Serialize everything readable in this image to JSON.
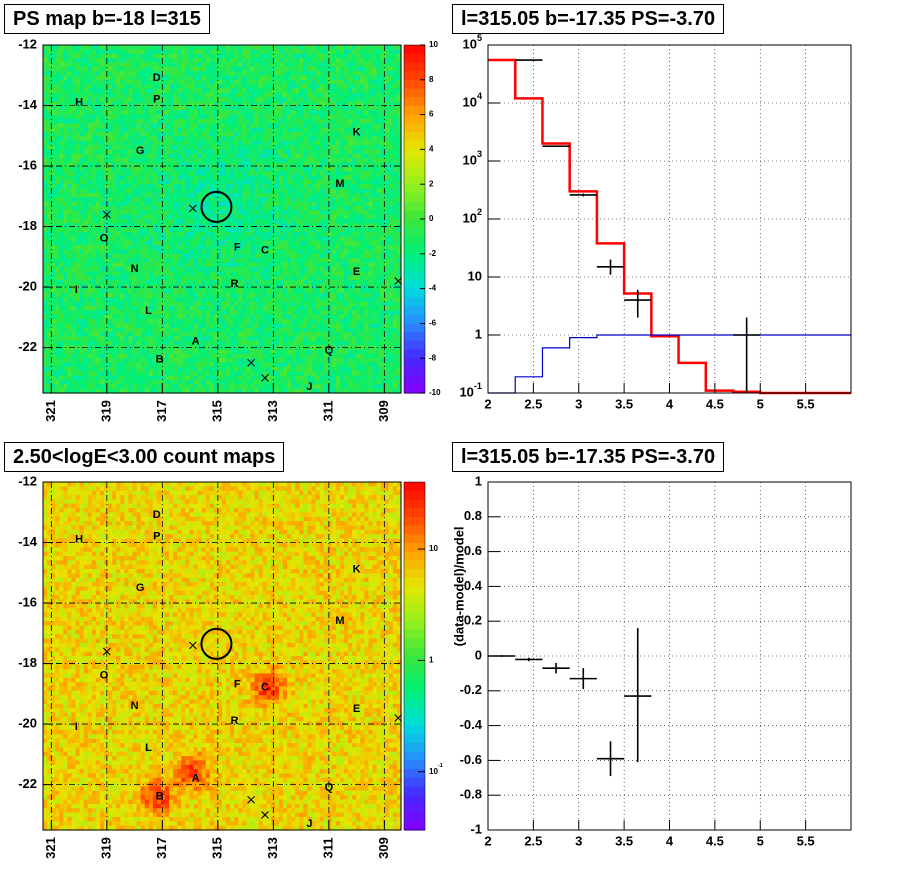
{
  "panels": {
    "tl": {
      "title": "PS map b=-18 l=315"
    },
    "tr": {
      "title": "l=315.05 b=-17.35 PS=-3.70"
    },
    "bl": {
      "title": "2.50<logE<3.00 count maps"
    },
    "br": {
      "title": "l=315.05 b=-17.35 PS=-3.70"
    }
  },
  "colors": {
    "red_model": "#ff0000",
    "blue_model": "#0000cc",
    "data": "#000000"
  },
  "chart_data": [
    {
      "type": "heatmap",
      "title": "PS map b=-18 l=315",
      "x_ticks": [
        "321",
        "319",
        "317",
        "315",
        "313",
        "311",
        "309"
      ],
      "x_tick_values": [
        321,
        319,
        317,
        315,
        313,
        311,
        309
      ],
      "xlim": [
        321.3,
        308.4
      ],
      "y_ticks": [
        "-12",
        "-14",
        "-16",
        "-18",
        "-20",
        "-22"
      ],
      "y_tick_values": [
        -12,
        -14,
        -16,
        -18,
        -20,
        -22
      ],
      "ylim": [
        -12,
        -23.5
      ],
      "colorbar": {
        "scale": "linear",
        "range": [
          -10,
          10
        ],
        "ticks": [
          "10",
          "8",
          "6",
          "4",
          "2",
          "0",
          "-2",
          "-4",
          "-6",
          "-8",
          "-10"
        ]
      },
      "source_labels": [
        {
          "label": "D",
          "l": 317.2,
          "b": -13.1
        },
        {
          "label": "P",
          "l": 317.2,
          "b": -13.8
        },
        {
          "label": "H",
          "l": 320.0,
          "b": -13.9
        },
        {
          "label": "K",
          "l": 310.0,
          "b": -14.9
        },
        {
          "label": "G",
          "l": 317.8,
          "b": -15.5
        },
        {
          "label": "M",
          "l": 310.6,
          "b": -16.6
        },
        {
          "label": "O",
          "l": 319.1,
          "b": -18.4
        },
        {
          "label": "F",
          "l": 314.3,
          "b": -18.7
        },
        {
          "label": "C",
          "l": 313.3,
          "b": -18.8
        },
        {
          "label": "N",
          "l": 318.0,
          "b": -19.4
        },
        {
          "label": "E",
          "l": 310.0,
          "b": -19.5
        },
        {
          "label": "R",
          "l": 314.4,
          "b": -19.9
        },
        {
          "label": "I",
          "l": 320.1,
          "b": -20.1
        },
        {
          "label": "L",
          "l": 317.5,
          "b": -20.8
        },
        {
          "label": "A",
          "l": 315.8,
          "b": -21.8
        },
        {
          "label": "Q",
          "l": 311.0,
          "b": -22.1
        },
        {
          "label": "B",
          "l": 317.1,
          "b": -22.4
        },
        {
          "label": "J",
          "l": 311.7,
          "b": -23.3
        }
      ],
      "crosses": [
        {
          "l": 319.0,
          "b": -17.6
        },
        {
          "l": 315.9,
          "b": -17.4
        },
        {
          "l": 313.8,
          "b": -22.5
        },
        {
          "l": 313.3,
          "b": -23.0
        },
        {
          "l": 308.5,
          "b": -19.8
        }
      ],
      "circle": {
        "l": 315.05,
        "b": -17.35
      }
    },
    {
      "type": "line",
      "title": "l=315.05 b=-17.35 PS=-3.70",
      "xlim": [
        2,
        6
      ],
      "ylim": [
        0.1,
        100000
      ],
      "yscale": "log",
      "x_ticks": [
        "2",
        "2.5",
        "3",
        "3.5",
        "4",
        "4.5",
        "5",
        "5.5"
      ],
      "x_tick_values": [
        2,
        2.5,
        3,
        3.5,
        4,
        4.5,
        5,
        5.5
      ],
      "y_ticks": [
        "10^-1",
        "1",
        "10",
        "10^2",
        "10^3",
        "10^4",
        "10^5"
      ],
      "y_tick_values": [
        0.1,
        1,
        10,
        100,
        1000,
        10000,
        100000
      ],
      "grid": true,
      "series": [
        {
          "kind": "step",
          "color": "#ff0000",
          "edges": [
            2.0,
            2.3,
            2.6,
            2.9,
            3.2,
            3.5,
            3.8,
            4.1,
            4.4,
            4.7,
            5.0,
            6.0
          ],
          "values": [
            55000,
            12000,
            2000,
            300,
            38,
            5.2,
            0.95,
            0.33,
            0.11,
            0.105,
            0.1
          ]
        },
        {
          "kind": "step",
          "color": "#0000cc",
          "edges": [
            2.0,
            2.3,
            2.6,
            2.9,
            3.2,
            3.5,
            3.8,
            4.1,
            4.4,
            4.7,
            5.0,
            6.0
          ],
          "values": [
            0.1,
            0.19,
            0.6,
            0.9,
            1.0,
            1.0,
            1.0,
            1.0,
            1.0,
            1.0,
            1.0
          ]
        },
        {
          "kind": "errorbar",
          "color": "#000000",
          "points": [
            {
              "x": 2.45,
              "xerr": 0.15,
              "y": 55000,
              "ylo": 54500,
              "yhi": 55500
            },
            {
              "x": 2.75,
              "xerr": 0.15,
              "y": 1800,
              "ylo": 1750,
              "yhi": 1850
            },
            {
              "x": 3.05,
              "xerr": 0.15,
              "y": 260,
              "ylo": 245,
              "yhi": 275
            },
            {
              "x": 3.35,
              "xerr": 0.15,
              "y": 15,
              "ylo": 11,
              "yhi": 20
            },
            {
              "x": 3.65,
              "xerr": 0.15,
              "y": 4.0,
              "ylo": 2.0,
              "yhi": 6.0
            },
            {
              "x": 4.85,
              "xerr": 0.15,
              "y": 1.0,
              "ylo": 0.1,
              "yhi": 2.0
            }
          ]
        }
      ]
    },
    {
      "type": "heatmap",
      "title": "2.50<logE<3.00 count maps",
      "x_ticks": [
        "321",
        "319",
        "317",
        "315",
        "313",
        "311",
        "309"
      ],
      "x_tick_values": [
        321,
        319,
        317,
        315,
        313,
        311,
        309
      ],
      "xlim": [
        321.3,
        308.4
      ],
      "y_ticks": [
        "-12",
        "-14",
        "-16",
        "-18",
        "-20",
        "-22"
      ],
      "y_tick_values": [
        -12,
        -14,
        -16,
        -18,
        -20,
        -22
      ],
      "ylim": [
        -12,
        -23.5
      ],
      "colorbar": {
        "scale": "log",
        "range": [
          0.03,
          40
        ],
        "ticks": [
          "10",
          "1",
          "10^-1"
        ]
      },
      "hotspots": [
        {
          "label": "A",
          "l": 315.9,
          "b": -21.6
        },
        {
          "label": "B",
          "l": 317.2,
          "b": -22.4
        },
        {
          "label": "C",
          "l": 313.2,
          "b": -18.8
        }
      ],
      "source_labels": [
        {
          "label": "D",
          "l": 317.2,
          "b": -13.1
        },
        {
          "label": "P",
          "l": 317.2,
          "b": -13.8
        },
        {
          "label": "H",
          "l": 320.0,
          "b": -13.9
        },
        {
          "label": "K",
          "l": 310.0,
          "b": -14.9
        },
        {
          "label": "G",
          "l": 317.8,
          "b": -15.5
        },
        {
          "label": "M",
          "l": 310.6,
          "b": -16.6
        },
        {
          "label": "O",
          "l": 319.1,
          "b": -18.4
        },
        {
          "label": "F",
          "l": 314.3,
          "b": -18.7
        },
        {
          "label": "C",
          "l": 313.3,
          "b": -18.8
        },
        {
          "label": "N",
          "l": 318.0,
          "b": -19.4
        },
        {
          "label": "E",
          "l": 310.0,
          "b": -19.5
        },
        {
          "label": "R",
          "l": 314.4,
          "b": -19.9
        },
        {
          "label": "I",
          "l": 320.1,
          "b": -20.1
        },
        {
          "label": "L",
          "l": 317.5,
          "b": -20.8
        },
        {
          "label": "A",
          "l": 315.8,
          "b": -21.8
        },
        {
          "label": "Q",
          "l": 311.0,
          "b": -22.1
        },
        {
          "label": "B",
          "l": 317.1,
          "b": -22.4
        },
        {
          "label": "J",
          "l": 311.7,
          "b": -23.3
        }
      ],
      "crosses": [
        {
          "l": 319.0,
          "b": -17.6
        },
        {
          "l": 315.9,
          "b": -17.4
        },
        {
          "l": 313.8,
          "b": -22.5
        },
        {
          "l": 313.3,
          "b": -23.0
        },
        {
          "l": 308.5,
          "b": -19.8
        }
      ],
      "circle": {
        "l": 315.05,
        "b": -17.35
      }
    },
    {
      "type": "scatter",
      "title": "l=315.05 b=-17.35 PS=-3.70",
      "ylabel": "(data-model)/model",
      "xlim": [
        2,
        6
      ],
      "ylim": [
        -1,
        1
      ],
      "x_ticks": [
        "2",
        "2.5",
        "3",
        "3.5",
        "4",
        "4.5",
        "5",
        "5.5"
      ],
      "x_tick_values": [
        2,
        2.5,
        3,
        3.5,
        4,
        4.5,
        5,
        5.5
      ],
      "y_ticks": [
        "1",
        "0.8",
        "0.6",
        "0.4",
        "0.2",
        "0",
        "-0.2",
        "-0.4",
        "-0.6",
        "-0.8",
        "-1"
      ],
      "y_tick_values": [
        1,
        0.8,
        0.6,
        0.4,
        0.2,
        0,
        -0.2,
        -0.4,
        -0.6,
        -0.8,
        -1
      ],
      "grid": true,
      "series": [
        {
          "kind": "errorbar",
          "color": "#000000",
          "points": [
            {
              "x": 2.15,
              "xerr": 0.15,
              "y": 0.0,
              "ylo": -0.005,
              "yhi": 0.005
            },
            {
              "x": 2.45,
              "xerr": 0.15,
              "y": -0.02,
              "ylo": -0.03,
              "yhi": -0.01
            },
            {
              "x": 2.75,
              "xerr": 0.15,
              "y": -0.07,
              "ylo": -0.1,
              "yhi": -0.04
            },
            {
              "x": 3.05,
              "xerr": 0.15,
              "y": -0.13,
              "ylo": -0.19,
              "yhi": -0.07
            },
            {
              "x": 3.35,
              "xerr": 0.15,
              "y": -0.59,
              "ylo": -0.69,
              "yhi": -0.49
            },
            {
              "x": 3.65,
              "xerr": 0.15,
              "y": -0.23,
              "ylo": -0.61,
              "yhi": 0.16
            }
          ]
        }
      ]
    }
  ]
}
